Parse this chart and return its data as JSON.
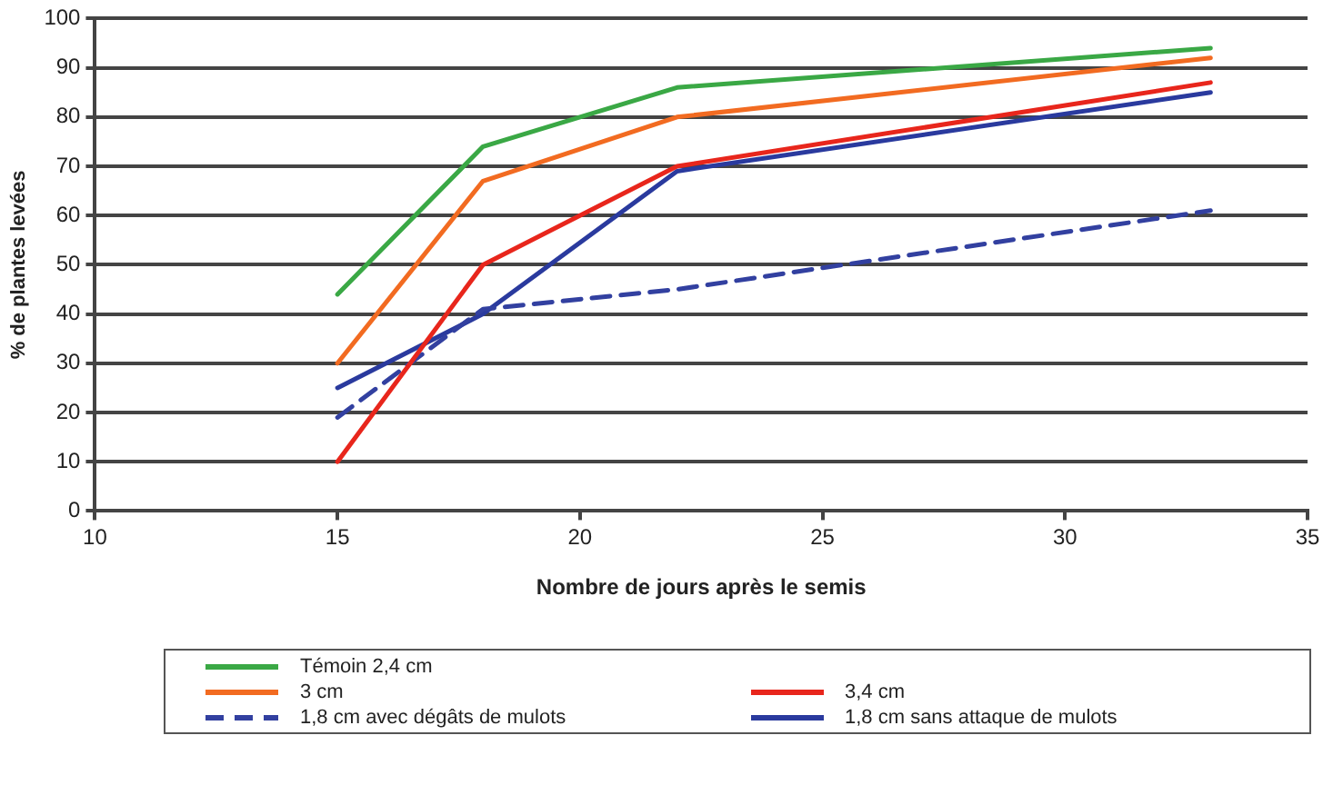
{
  "chart_data": {
    "type": "line",
    "xlabel": "Nombre de jours après le semis",
    "ylabel": "% de plantes levées",
    "xlim": [
      10,
      35
    ],
    "xticks": [
      10,
      15,
      20,
      25,
      30,
      35
    ],
    "ylim": [
      0,
      100
    ],
    "yticks": [
      0,
      10,
      20,
      30,
      40,
      50,
      60,
      70,
      80,
      90,
      100
    ],
    "grid": "y",
    "legend": "bottom",
    "marker": "none",
    "series": [
      {
        "name": "Témoin 2,4 cm",
        "color": "#3aa845",
        "x": [
          15,
          18,
          22,
          33
        ],
        "values": [
          44,
          74,
          86,
          94
        ]
      },
      {
        "name": "3 cm",
        "color": "#f26b21",
        "x": [
          15,
          18,
          22,
          33
        ],
        "values": [
          30,
          67,
          80,
          92
        ]
      },
      {
        "name": "3,4 cm",
        "color": "#e8261c",
        "x": [
          15,
          18,
          22,
          33
        ],
        "values": [
          10,
          50,
          70,
          87
        ]
      },
      {
        "name": "1,8 cm avec dégâts de mulots",
        "color": "#3240a0",
        "line_style": "dashed",
        "x": [
          15,
          18,
          22,
          33
        ],
        "values": [
          19,
          41,
          45,
          61
        ]
      },
      {
        "name": "1,8 cm sans attaque de mulots",
        "color": "#2a3a9e",
        "line_style": "solid",
        "x": [
          15,
          18,
          22,
          33
        ],
        "values": [
          25,
          40,
          69,
          85
        ]
      }
    ]
  }
}
